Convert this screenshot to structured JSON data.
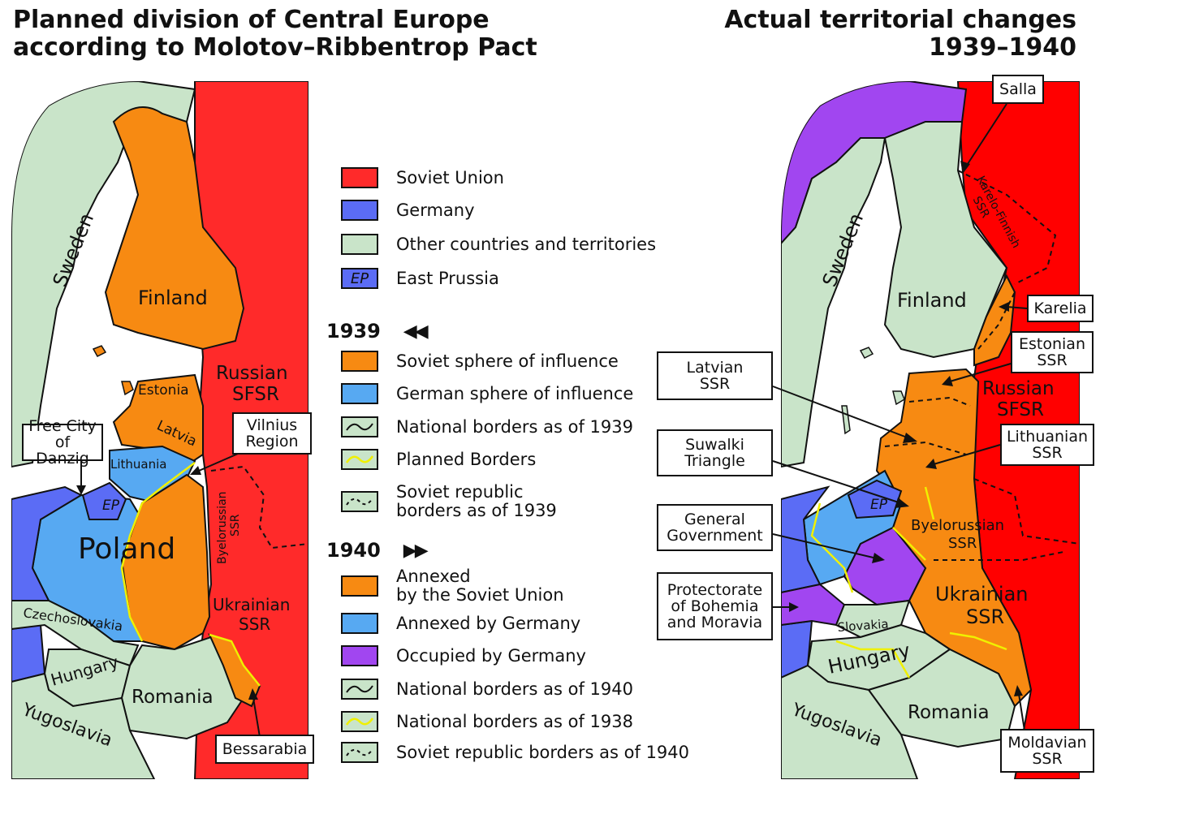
{
  "titles": {
    "left": "Planned division of Central Europe\naccording to Molotov–Ribbentrop Pact",
    "right": "Actual territorial changes\n1939–1940"
  },
  "colors": {
    "soviet_union": "#ff2a2a",
    "germany": "#5b6cf5",
    "other": "#c9e4c9",
    "soviet_sphere": "#f78a12",
    "german_sphere": "#57a9f2",
    "occupied_germany": "#a146f0",
    "planned_border": "#f0f000",
    "border": "#111111",
    "water": "#ffffff"
  },
  "legend": {
    "general": [
      {
        "label": "Soviet Union",
        "swatch": "soviet_union",
        "icon": "solid-swatch"
      },
      {
        "label": "Germany",
        "swatch": "germany",
        "icon": "solid-swatch"
      },
      {
        "label": "Other countries and territories",
        "swatch": "other",
        "icon": "solid-swatch"
      },
      {
        "label": "East Prussia",
        "swatch": "germany",
        "icon": "ep-swatch",
        "swatch_text": "EP"
      }
    ],
    "y1939": {
      "year": "1939",
      "arrows": "◀◀",
      "items": [
        {
          "label": "Soviet sphere of influence",
          "swatch": "soviet_sphere",
          "icon": "solid-swatch"
        },
        {
          "label": "German sphere of influence",
          "swatch": "german_sphere",
          "icon": "solid-swatch"
        },
        {
          "label": "National borders as of 1939",
          "swatch": "other",
          "icon": "black-wave-icon"
        },
        {
          "label": "Planned Borders",
          "swatch": "other",
          "icon": "yellow-wave-icon"
        },
        {
          "label": "Soviet republic\nborders as of 1939",
          "swatch": "other",
          "icon": "dashed-wave-icon"
        }
      ]
    },
    "y1940": {
      "year": "1940",
      "arrows": "▶▶",
      "items": [
        {
          "label": "Annexed\nby the Soviet Union",
          "swatch": "soviet_sphere",
          "icon": "solid-swatch"
        },
        {
          "label": "Annexed by Germany",
          "swatch": "german_sphere",
          "icon": "solid-swatch"
        },
        {
          "label": "Occupied by Germany",
          "swatch": "occupied_germany",
          "icon": "solid-swatch"
        },
        {
          "label": "National borders as of 1940",
          "swatch": "other",
          "icon": "black-wave-icon"
        },
        {
          "label": "National borders as of 1938",
          "swatch": "other",
          "icon": "yellow-wave-icon"
        },
        {
          "label": "Soviet republic borders as of 1940",
          "swatch": "other",
          "icon": "dashed-wave-icon"
        }
      ]
    }
  },
  "left_map": {
    "labels": {
      "sweden": "Sweden",
      "finland": "Finland",
      "estonia": "Estonia",
      "latvia": "Latvia",
      "lithuania": "Lithuania",
      "ep": "EP",
      "poland": "Poland",
      "russian_sfsr": "Russian\nSFSR",
      "byelorussian_ssr": "Byelorussian\nSSR",
      "ukrainian_ssr": "Ukrainian\nSSR",
      "czechoslovakia": "Czechoslovakia",
      "hungary": "Hungary",
      "romania": "Romania",
      "yugoslavia": "Yugoslavia"
    },
    "callouts": {
      "danzig": "Free City\nof Danzig",
      "vilnius": "Vilnius\nRegion",
      "bessarabia": "Bessarabia"
    }
  },
  "right_map": {
    "labels": {
      "sweden": "Sweden",
      "finland": "Finland",
      "karelo_finnish": "Karelo-Finnish\nSSR",
      "russian_sfsr": "Russian\nSFSR",
      "ep": "EP",
      "byelorussian_ssr": "Byelorussian\nSSR",
      "ukrainian_ssr": "Ukrainian\nSSR",
      "slovakia": "Slovakia",
      "hungary": "Hungary",
      "romania": "Romania",
      "yugoslavia": "Yugoslavia"
    },
    "callouts": {
      "salla": "Salla",
      "karelia": "Karelia",
      "estonian_ssr": "Estonian\nSSR",
      "lithuanian_ssr": "Lithuanian\nSSR",
      "latvian_ssr": "Latvian\nSSR",
      "suwalki": "Suwalki\nTriangle",
      "general_government": "General\nGovernment",
      "protectorate": "Protectorate\nof Bohemia\nand Moravia",
      "moldavian_ssr": "Moldavian\nSSR"
    }
  }
}
